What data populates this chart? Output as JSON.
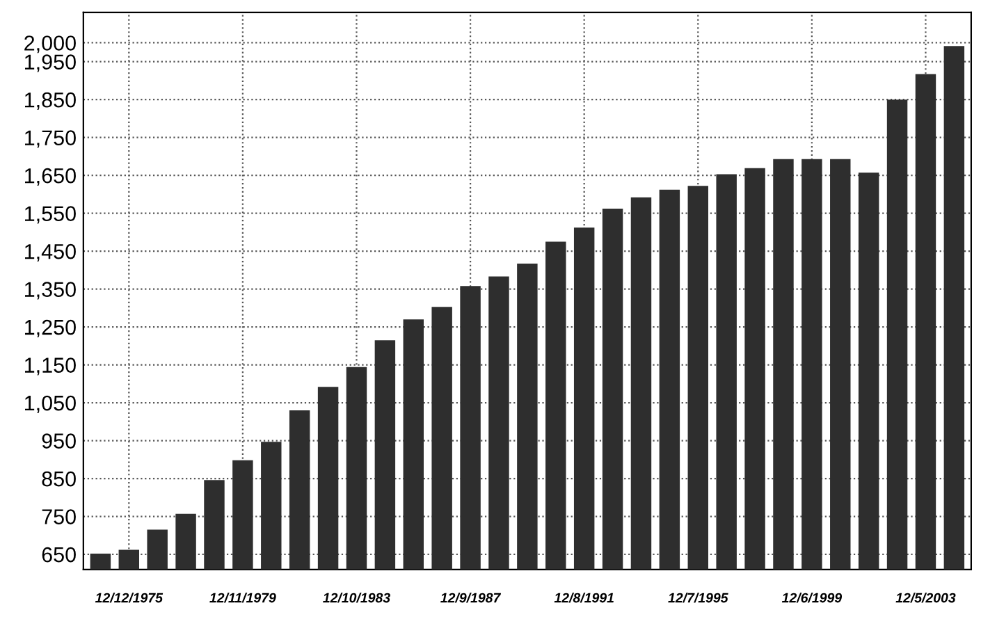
{
  "chart_data": {
    "type": "bar",
    "categories": [
      null,
      "12/12/1975",
      null,
      null,
      null,
      "12/11/1979",
      null,
      null,
      null,
      "12/10/1983",
      null,
      null,
      null,
      "12/9/1987",
      null,
      null,
      null,
      "12/8/1991",
      null,
      null,
      null,
      "12/7/1995",
      null,
      null,
      null,
      "12/6/1999",
      null,
      null,
      null,
      "12/5/2003",
      null
    ],
    "values": [
      652,
      662,
      715,
      757,
      846,
      898,
      947,
      1030,
      1092,
      1144,
      1215,
      1270,
      1303,
      1358,
      1383,
      1417,
      1475,
      1512,
      1562,
      1592,
      1612,
      1622,
      1653,
      1669,
      1693,
      1693,
      1693,
      1657,
      1850,
      1917,
      1991
    ],
    "color": "#2e2e2e",
    "ylim": [
      610,
      2080
    ],
    "yticks": [
      {
        "value": 650,
        "label": "650"
      },
      {
        "value": 750,
        "label": "750"
      },
      {
        "value": 850,
        "label": "850"
      },
      {
        "value": 950,
        "label": "950"
      },
      {
        "value": 1050,
        "label": "1,050"
      },
      {
        "value": 1150,
        "label": "1,150"
      },
      {
        "value": 1250,
        "label": "1,250"
      },
      {
        "value": 1350,
        "label": "1,350"
      },
      {
        "value": 1450,
        "label": "1,450"
      },
      {
        "value": 1550,
        "label": "1,550"
      },
      {
        "value": 1650,
        "label": "1,650"
      },
      {
        "value": 1750,
        "label": "1,750"
      },
      {
        "value": 1850,
        "label": "1,850"
      },
      {
        "value": 1950,
        "label": "1,950"
      },
      {
        "value": 2000,
        "label": "2,000"
      }
    ],
    "grid": true
  }
}
